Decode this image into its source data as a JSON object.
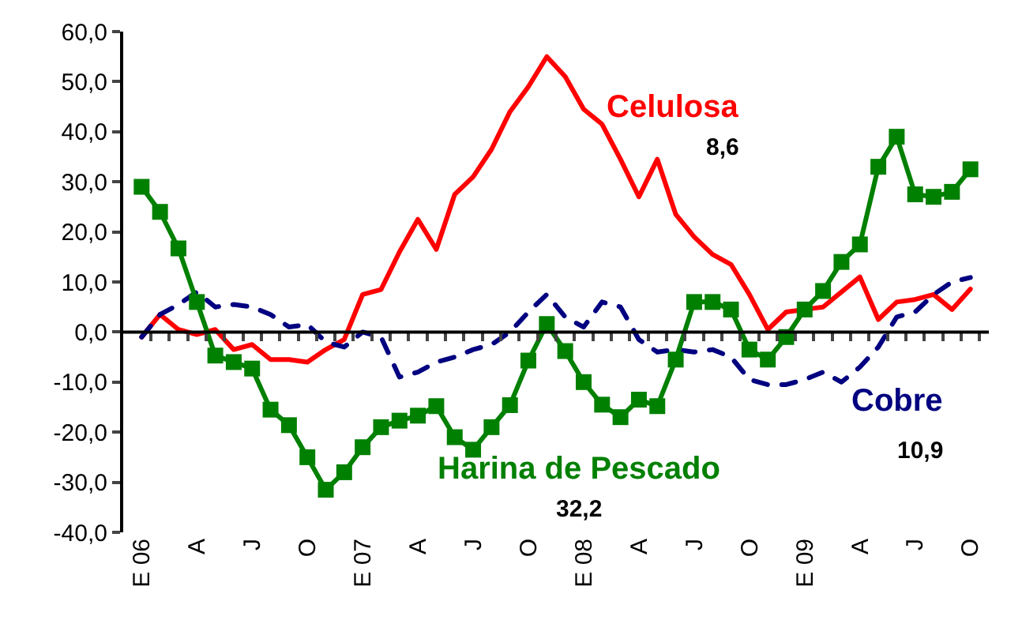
{
  "chart_data": {
    "type": "line",
    "categories": [
      "E 06",
      null,
      null,
      "A",
      null,
      null,
      "J",
      null,
      null,
      "O",
      null,
      null,
      "E 07",
      null,
      null,
      "A",
      null,
      null,
      "J",
      null,
      null,
      "O",
      null,
      null,
      "E 08",
      null,
      null,
      "A",
      null,
      null,
      "J",
      null,
      null,
      "O",
      null,
      null,
      "E 09",
      null,
      null,
      "A",
      null,
      null,
      "J",
      null,
      null,
      "O"
    ],
    "series": [
      {
        "name": "Celulosa",
        "color": "#ff0000",
        "line_style": "solid",
        "marker": "none",
        "values": [
          -1,
          3.5,
          0.5,
          -0.5,
          0.5,
          -3.5,
          -2.5,
          -5.5,
          -5.5,
          -6,
          -3.5,
          -1.5,
          7.5,
          8.5,
          16,
          22.5,
          16.5,
          27.5,
          31,
          36.5,
          44,
          49,
          55,
          51,
          44.5,
          41.5,
          34.5,
          27,
          34.5,
          23.5,
          19,
          15.5,
          13.5,
          7.5,
          0.5,
          4,
          4.5,
          5,
          8,
          11,
          2.5,
          6,
          6.5,
          7.5,
          4.5,
          8.6
        ]
      },
      {
        "name": "Cobre",
        "color": "#000080",
        "line_style": "dashed",
        "marker": "none",
        "values": [
          -1,
          3.5,
          5.5,
          8,
          5,
          5.5,
          5,
          3.5,
          1,
          1.5,
          -2,
          -3,
          0,
          -1,
          -9,
          -8,
          -6,
          -5,
          -3.5,
          -2.5,
          0,
          4,
          7.5,
          3,
          1,
          6,
          5,
          -1.5,
          -4,
          -3.5,
          -4,
          -3.5,
          -5,
          -9.5,
          -10.5,
          -10.5,
          -9.5,
          -8,
          -10,
          -7,
          -3,
          3,
          4,
          7.5,
          10,
          10.9
        ]
      },
      {
        "name": "Harina de Pescado",
        "color": "#008000",
        "line_style": "solid",
        "marker": "square",
        "values": [
          29,
          24,
          16.7,
          6,
          -4.7,
          -6,
          -7.3,
          -15.5,
          -18.6,
          -25,
          -31.5,
          -28,
          -23,
          -19,
          -17.7,
          -16.7,
          -14.8,
          -21,
          -23.5,
          -19,
          -14.6,
          -5.7,
          1.6,
          -3.8,
          -10,
          -14.5,
          -17,
          -13.5,
          -14.8,
          -5.5,
          6,
          6,
          4.5,
          -3.5,
          -5.5,
          -1,
          4.5,
          8.2,
          14,
          17.5,
          33,
          39,
          27.5,
          27,
          28,
          32.5
        ]
      }
    ],
    "annotations": [
      "8,6",
      "10,9",
      "32,2"
    ],
    "ylim": [
      -40,
      60
    ],
    "yticks": [
      {
        "value": -40,
        "label": "-40,0"
      },
      {
        "value": -30,
        "label": "-30,0"
      },
      {
        "value": -20,
        "label": "-20,0"
      },
      {
        "value": -10,
        "label": "-10,0"
      },
      {
        "value": 0,
        "label": "0,0"
      },
      {
        "value": 10,
        "label": "10,0"
      },
      {
        "value": 20,
        "label": "20,0"
      },
      {
        "value": 30,
        "label": "30,0"
      },
      {
        "value": 40,
        "label": "40,0"
      },
      {
        "value": 50,
        "label": "50,0"
      },
      {
        "value": 60,
        "label": "60,0"
      }
    ],
    "ref_lines": [
      {
        "axis": "y",
        "value": 0,
        "color": "#000000",
        "line_style": "solid"
      }
    ],
    "legend": false
  }
}
